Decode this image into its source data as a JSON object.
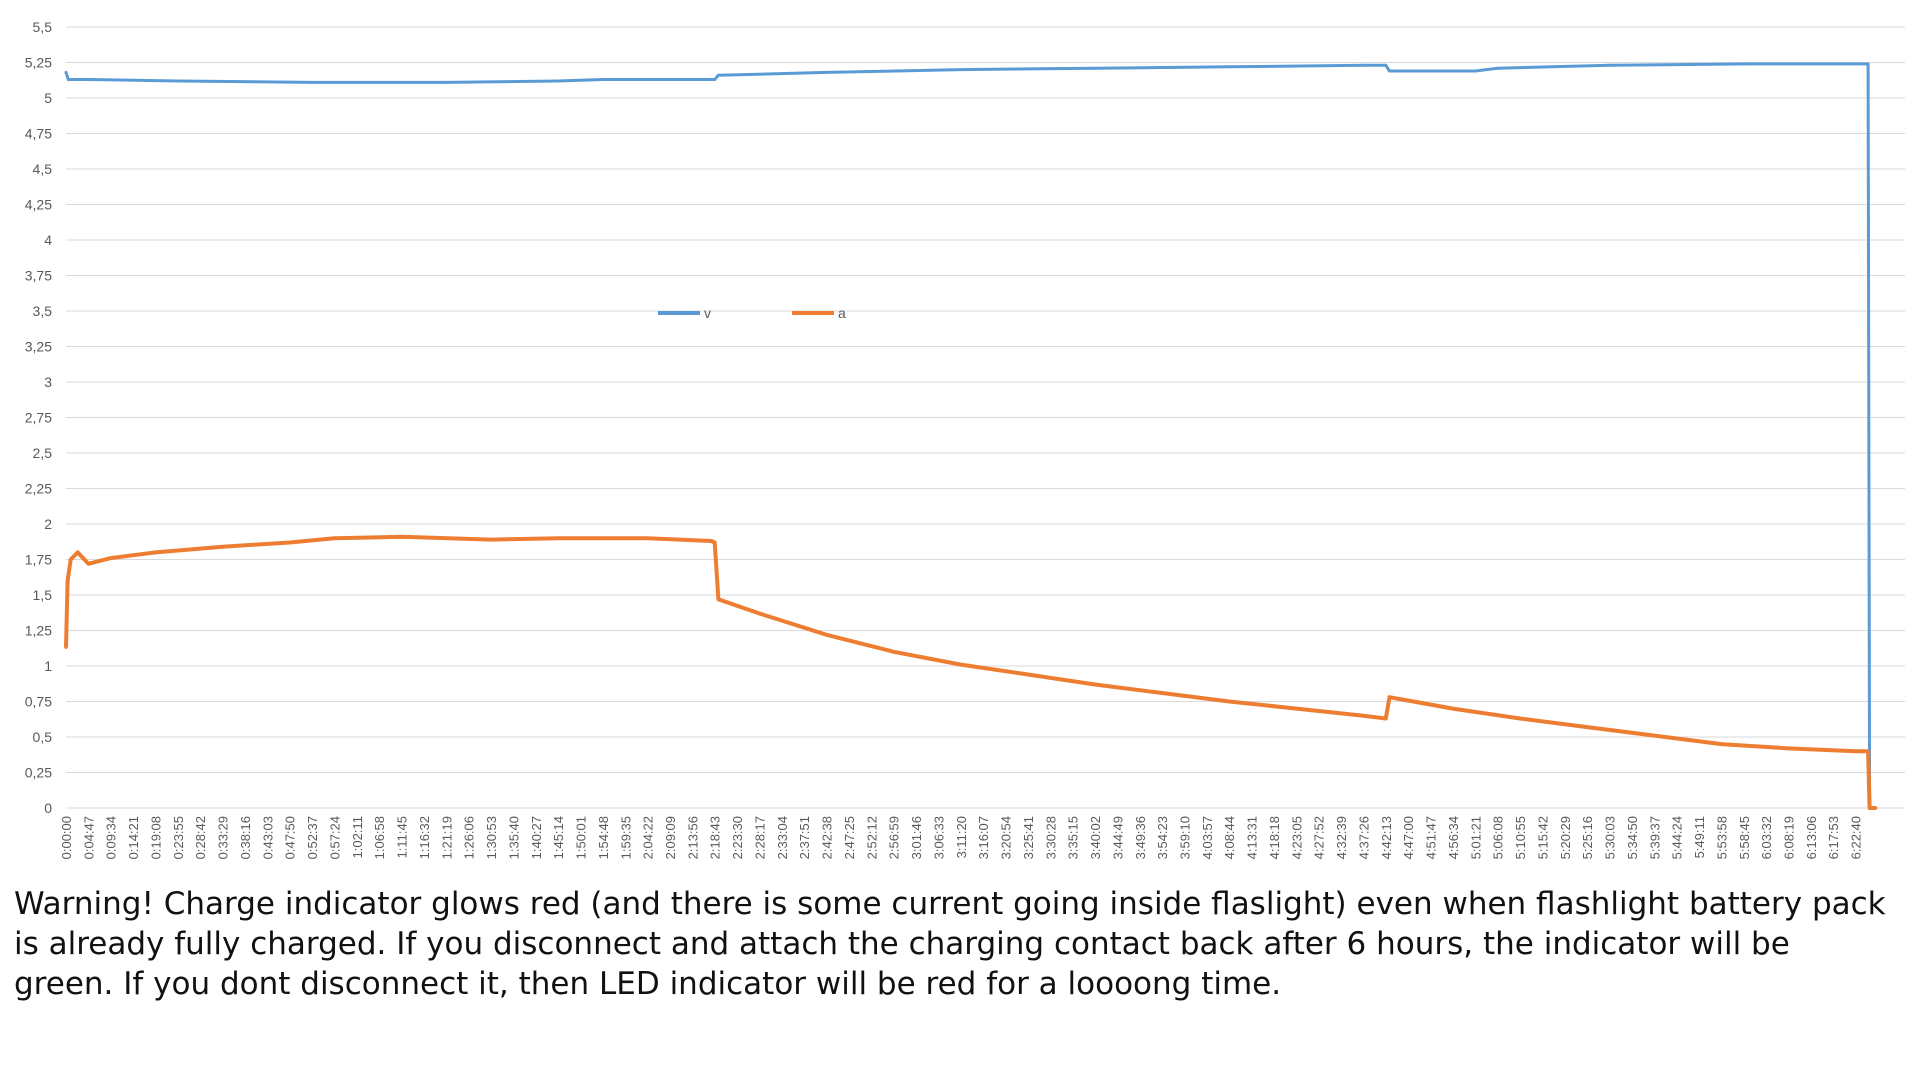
{
  "chart_data": {
    "type": "line",
    "title": "",
    "xlabel": "",
    "ylabel": "",
    "ylim": [
      0,
      5.5
    ],
    "y_ticks": [
      "0",
      "0,25",
      "0,5",
      "0,75",
      "1",
      "1,25",
      "1,5",
      "1,75",
      "2",
      "2,25",
      "2,5",
      "2,75",
      "3",
      "3,25",
      "3,5",
      "3,75",
      "4",
      "4,25",
      "4,5",
      "4,75",
      "5",
      "5,25",
      "5,5"
    ],
    "x_tick_labels": [
      "0:00:00",
      "0:04:47",
      "0:09:34",
      "0:14:21",
      "0:19:08",
      "0:23:55",
      "0:28:42",
      "0:33:29",
      "0:38:16",
      "0:43:03",
      "0:47:50",
      "0:52:37",
      "0:57:24",
      "1:02:11",
      "1:06:58",
      "1:11:45",
      "1:16:32",
      "1:21:19",
      "1:26:06",
      "1:30:53",
      "1:35:40",
      "1:40:27",
      "1:45:14",
      "1:50:01",
      "1:54:48",
      "1:59:35",
      "2:04:22",
      "2:09:09",
      "2:13:56",
      "2:18:43",
      "2:23:30",
      "2:28:17",
      "2:33:04",
      "2:37:51",
      "2:42:38",
      "2:47:25",
      "2:52:12",
      "2:56:59",
      "3:01:46",
      "3:06:33",
      "3:11:20",
      "3:16:07",
      "3:20:54",
      "3:25:41",
      "3:30:28",
      "3:35:15",
      "3:40:02",
      "3:44:49",
      "3:49:36",
      "3:54:23",
      "3:59:10",
      "4:03:57",
      "4:08:44",
      "4:13:31",
      "4:18:18",
      "4:23:05",
      "4:27:52",
      "4:32:39",
      "4:37:26",
      "4:42:13",
      "4:47:00",
      "4:51:47",
      "4:56:34",
      "5:01:21",
      "5:06:08",
      "5:10:55",
      "5:15:42",
      "5:20:29",
      "5:25:16",
      "5:30:03",
      "5:34:50",
      "5:39:37",
      "5:44:24",
      "5:49:11",
      "5:53:58",
      "5:58:45",
      "6:03:32",
      "6:08:19",
      "6:13:06",
      "6:17:53",
      "6:22:40"
    ],
    "grid": true,
    "legend_position": "center",
    "series": [
      {
        "name": "v",
        "color": "#5B9BD5",
        "x": [
          "0:00:00",
          "0:00:30",
          "0:04:47",
          "0:23:55",
          "0:52:37",
          "1:21:19",
          "1:45:14",
          "1:54:48",
          "1:59:35",
          "2:18:43",
          "2:19:30",
          "2:42:38",
          "3:11:20",
          "3:40:02",
          "4:08:44",
          "4:37:26",
          "4:42:13",
          "4:43:00",
          "5:01:21",
          "5:06:08",
          "5:30:03",
          "6:00:00",
          "6:25:20",
          "6:25:40",
          "6:27:00"
        ],
        "values": [
          5.18,
          5.13,
          5.13,
          5.12,
          5.11,
          5.11,
          5.12,
          5.13,
          5.13,
          5.13,
          5.16,
          5.18,
          5.2,
          5.21,
          5.22,
          5.23,
          5.23,
          5.19,
          5.19,
          5.21,
          5.23,
          5.24,
          5.24,
          0,
          0
        ]
      },
      {
        "name": "a",
        "color": "#ED7D31",
        "x": [
          "0:00:00",
          "0:00:20",
          "0:01:00",
          "0:02:30",
          "0:04:47",
          "0:09:34",
          "0:19:08",
          "0:33:29",
          "0:47:50",
          "0:57:24",
          "1:11:45",
          "1:30:53",
          "1:45:14",
          "2:04:22",
          "2:18:00",
          "2:18:43",
          "2:19:30",
          "2:28:17",
          "2:42:38",
          "2:56:59",
          "3:11:20",
          "3:25:41",
          "3:40:02",
          "3:54:23",
          "4:08:44",
          "4:23:05",
          "4:37:26",
          "4:42:13",
          "4:43:00",
          "4:56:34",
          "5:10:55",
          "5:25:16",
          "5:39:37",
          "5:53:58",
          "6:08:19",
          "6:22:40",
          "6:25:20",
          "6:25:40",
          "6:27:00"
        ],
        "values": [
          1.13,
          1.6,
          1.75,
          1.8,
          1.72,
          1.76,
          1.8,
          1.84,
          1.87,
          1.9,
          1.91,
          1.89,
          1.9,
          1.9,
          1.88,
          1.87,
          1.47,
          1.37,
          1.22,
          1.1,
          1.01,
          0.94,
          0.87,
          0.81,
          0.75,
          0.7,
          0.65,
          0.63,
          0.78,
          0.7,
          0.63,
          0.57,
          0.51,
          0.45,
          0.42,
          0.4,
          0.4,
          0,
          0
        ]
      }
    ]
  },
  "caption": "Warning! Charge indicator glows red (and there is some current going inside flaslight) even when flashlight battery pack is already fully charged. If you disconnect and attach the charging contact back after 6 hours, the indicator will be green. If you dont disconnect it, then LED indicator will be red for a loooong time."
}
